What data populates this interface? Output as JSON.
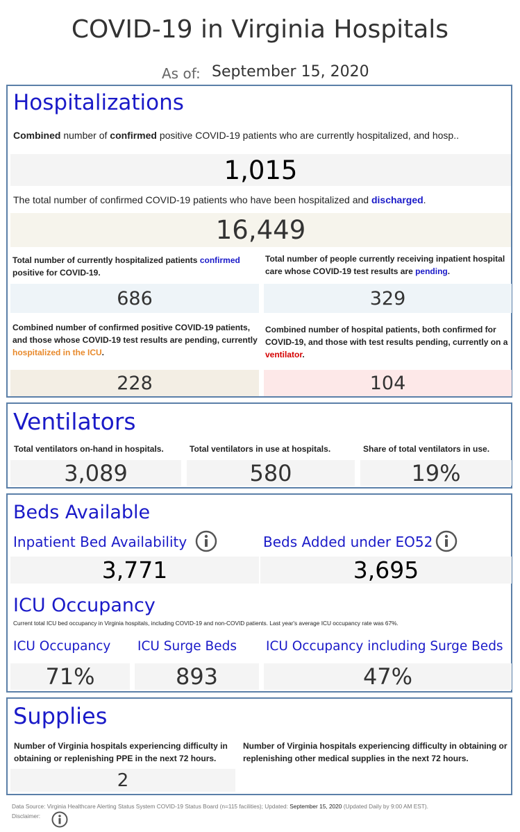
{
  "header": {
    "title": "COVID-19 in Virginia Hospitals",
    "as_of_label": "As of:",
    "date": "September 15, 2020"
  },
  "hospitalizations": {
    "title": "Hospitalizations",
    "combined_desc": [
      "Combined",
      " number of ",
      "confirmed",
      " positive COVID-19 patients who are currently hospitalized, and hosp.."
    ],
    "combined_value": "1,015",
    "discharged_desc": [
      "The total number of confirmed COVID-19 patients who have been hospitalized and ",
      "discharged",
      "."
    ],
    "discharged_value": "16,449",
    "cards": [
      {
        "desc": [
          "Total number of currently hospitalized patients ",
          "confirmed",
          " positive for COVID-19."
        ],
        "value": "686"
      },
      {
        "desc": [
          "Total number of people currently receiving inpatient hospital care whose COVID-19 test results are ",
          "pending",
          "."
        ],
        "value": "329"
      },
      {
        "desc": [
          "Combined number of confirmed positive COVID-19 patients, and those whose COVID-19 test results are pending, currently ",
          "hospitalized in the ICU",
          "."
        ],
        "value": "228"
      },
      {
        "desc": [
          "Combined number of hospital patients, both confirmed for COVID-19, and those with test results pending, currently on a ",
          "ventilator",
          "."
        ],
        "value": "104"
      }
    ]
  },
  "ventilators": {
    "title": "Ventilators",
    "cards": [
      {
        "desc": "Total ventilators on-hand in hospitals.",
        "value": "3,089"
      },
      {
        "desc": "Total ventilators in use at hospitals.",
        "value": "580"
      },
      {
        "desc": "Share of total ventilators in use.",
        "value": "19%"
      }
    ]
  },
  "beds": {
    "title": "Beds Available",
    "cards": [
      {
        "label": "Inpatient Bed Availability",
        "value": "3,771"
      },
      {
        "label": "Beds Added under EO52",
        "value": "3,695"
      }
    ],
    "icu_title": "ICU Occupancy",
    "icu_note": "Current total ICU bed occupancy in Virginia hospitals, including COVID-19 and non-COVID patients. Last year's average ICU occupancy rate was 67%.",
    "icu_cards": [
      {
        "label": "ICU Occupancy",
        "value": "71%"
      },
      {
        "label": "ICU Surge Beds",
        "value": "893"
      },
      {
        "label": "ICU Occupancy including Surge Beds",
        "value": "47%"
      }
    ]
  },
  "supplies": {
    "title": "Supplies",
    "cards": [
      {
        "desc": "Number of Virginia hospitals experiencing difficulty in obtaining or replenishing PPE in the next 72 hours.",
        "value": "2"
      },
      {
        "desc": "Number of Virginia hospitals experiencing difficulty in obtaining or replenishing other medical supplies in the next 72 hours."
      }
    ]
  },
  "footer": {
    "source": [
      "Data Source: Virginia Healthcare Alerting Status System COVID-19 Status Board (n=115 facilities); Updated: ",
      "September 15, 2020",
      " (Updated Daily by 9:00 AM EST)."
    ],
    "disclaimer": "Disclaimer:"
  }
}
